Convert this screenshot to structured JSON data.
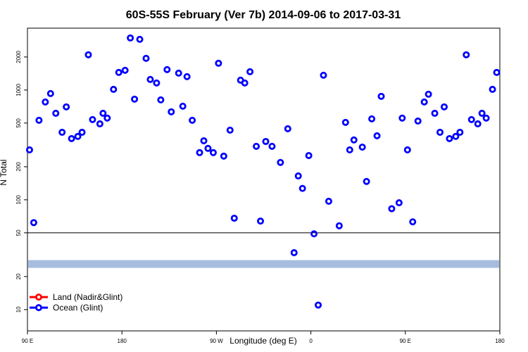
{
  "chart_data": {
    "type": "scatter",
    "title": "60S-55S February (Ver 7b)   2014-09-06 to 2017-03-31",
    "x_label": "Longitude (deg E)",
    "y_label": "N Total",
    "log_y": true,
    "xlim": [
      90,
      540
    ],
    "xticks": [
      {
        "value": 90,
        "label": "90 E"
      },
      180,
      {
        "value": 270,
        "label": "90 W"
      },
      {
        "value": 360,
        "label": "0"
      },
      {
        "value": 450,
        "label": "90 E"
      },
      {
        "value": 540,
        "label": "180"
      }
    ],
    "ylim": [
      6.4,
      3660
    ],
    "yticks": [
      10,
      20,
      50,
      100,
      200,
      500,
      1000,
      2000
    ],
    "hline": 50,
    "band_value": 26,
    "band_color": "#a6bde0",
    "legend": "bottom-left",
    "series": [
      {
        "name": "Land (Nadir&Glint)",
        "color": "#ff0000",
        "x": [],
        "values": []
      },
      {
        "name": "Ocean (Glint)",
        "color": "#0000ff",
        "x": [
          92,
          96,
          101,
          107,
          112,
          117,
          123,
          127,
          132,
          138,
          142,
          148,
          152,
          159,
          162,
          166,
          172,
          177,
          183,
          188,
          192,
          197,
          203,
          207,
          213,
          217,
          223,
          227,
          234,
          238,
          242,
          247,
          254,
          258,
          262,
          267,
          272,
          277,
          283,
          287,
          293,
          297,
          302,
          308,
          312,
          317,
          323,
          331,
          338,
          344,
          348,
          352,
          358,
          363,
          367,
          372,
          377,
          387,
          393,
          397,
          401,
          409,
          413,
          418,
          423,
          427,
          437,
          444,
          447,
          452,
          457,
          462,
          468,
          472,
          478,
          483,
          487,
          492,
          498,
          502,
          508,
          513,
          519,
          523,
          527,
          533,
          537
        ],
        "values": [
          285,
          62,
          530,
          778,
          929,
          614,
          412,
          702,
          361,
          378,
          412,
          2094,
          538,
          492,
          614,
          555,
          1014,
          1446,
          1512,
          2980,
          826,
          2895,
          1943,
          1248,
          1159,
          813,
          1535,
          633,
          1425,
          712,
          1324,
          530,
          269,
          345,
          294,
          269,
          1754,
          250,
          431,
          68,
          1230,
          1159,
          1468,
          307,
          64,
          340,
          307,
          219,
          444,
          33,
          165,
          127,
          253,
          49,
          11,
          1364,
          97,
          58,
          507,
          285,
          351,
          302,
          147,
          546,
          383,
          876,
          83,
          94,
          555,
          285,
          63,
          522,
          778,
          916,
          614,
          412,
          702,
          361,
          378,
          412,
          2094,
          538,
          492,
          614,
          555,
          1014,
          1446
        ]
      }
    ]
  }
}
